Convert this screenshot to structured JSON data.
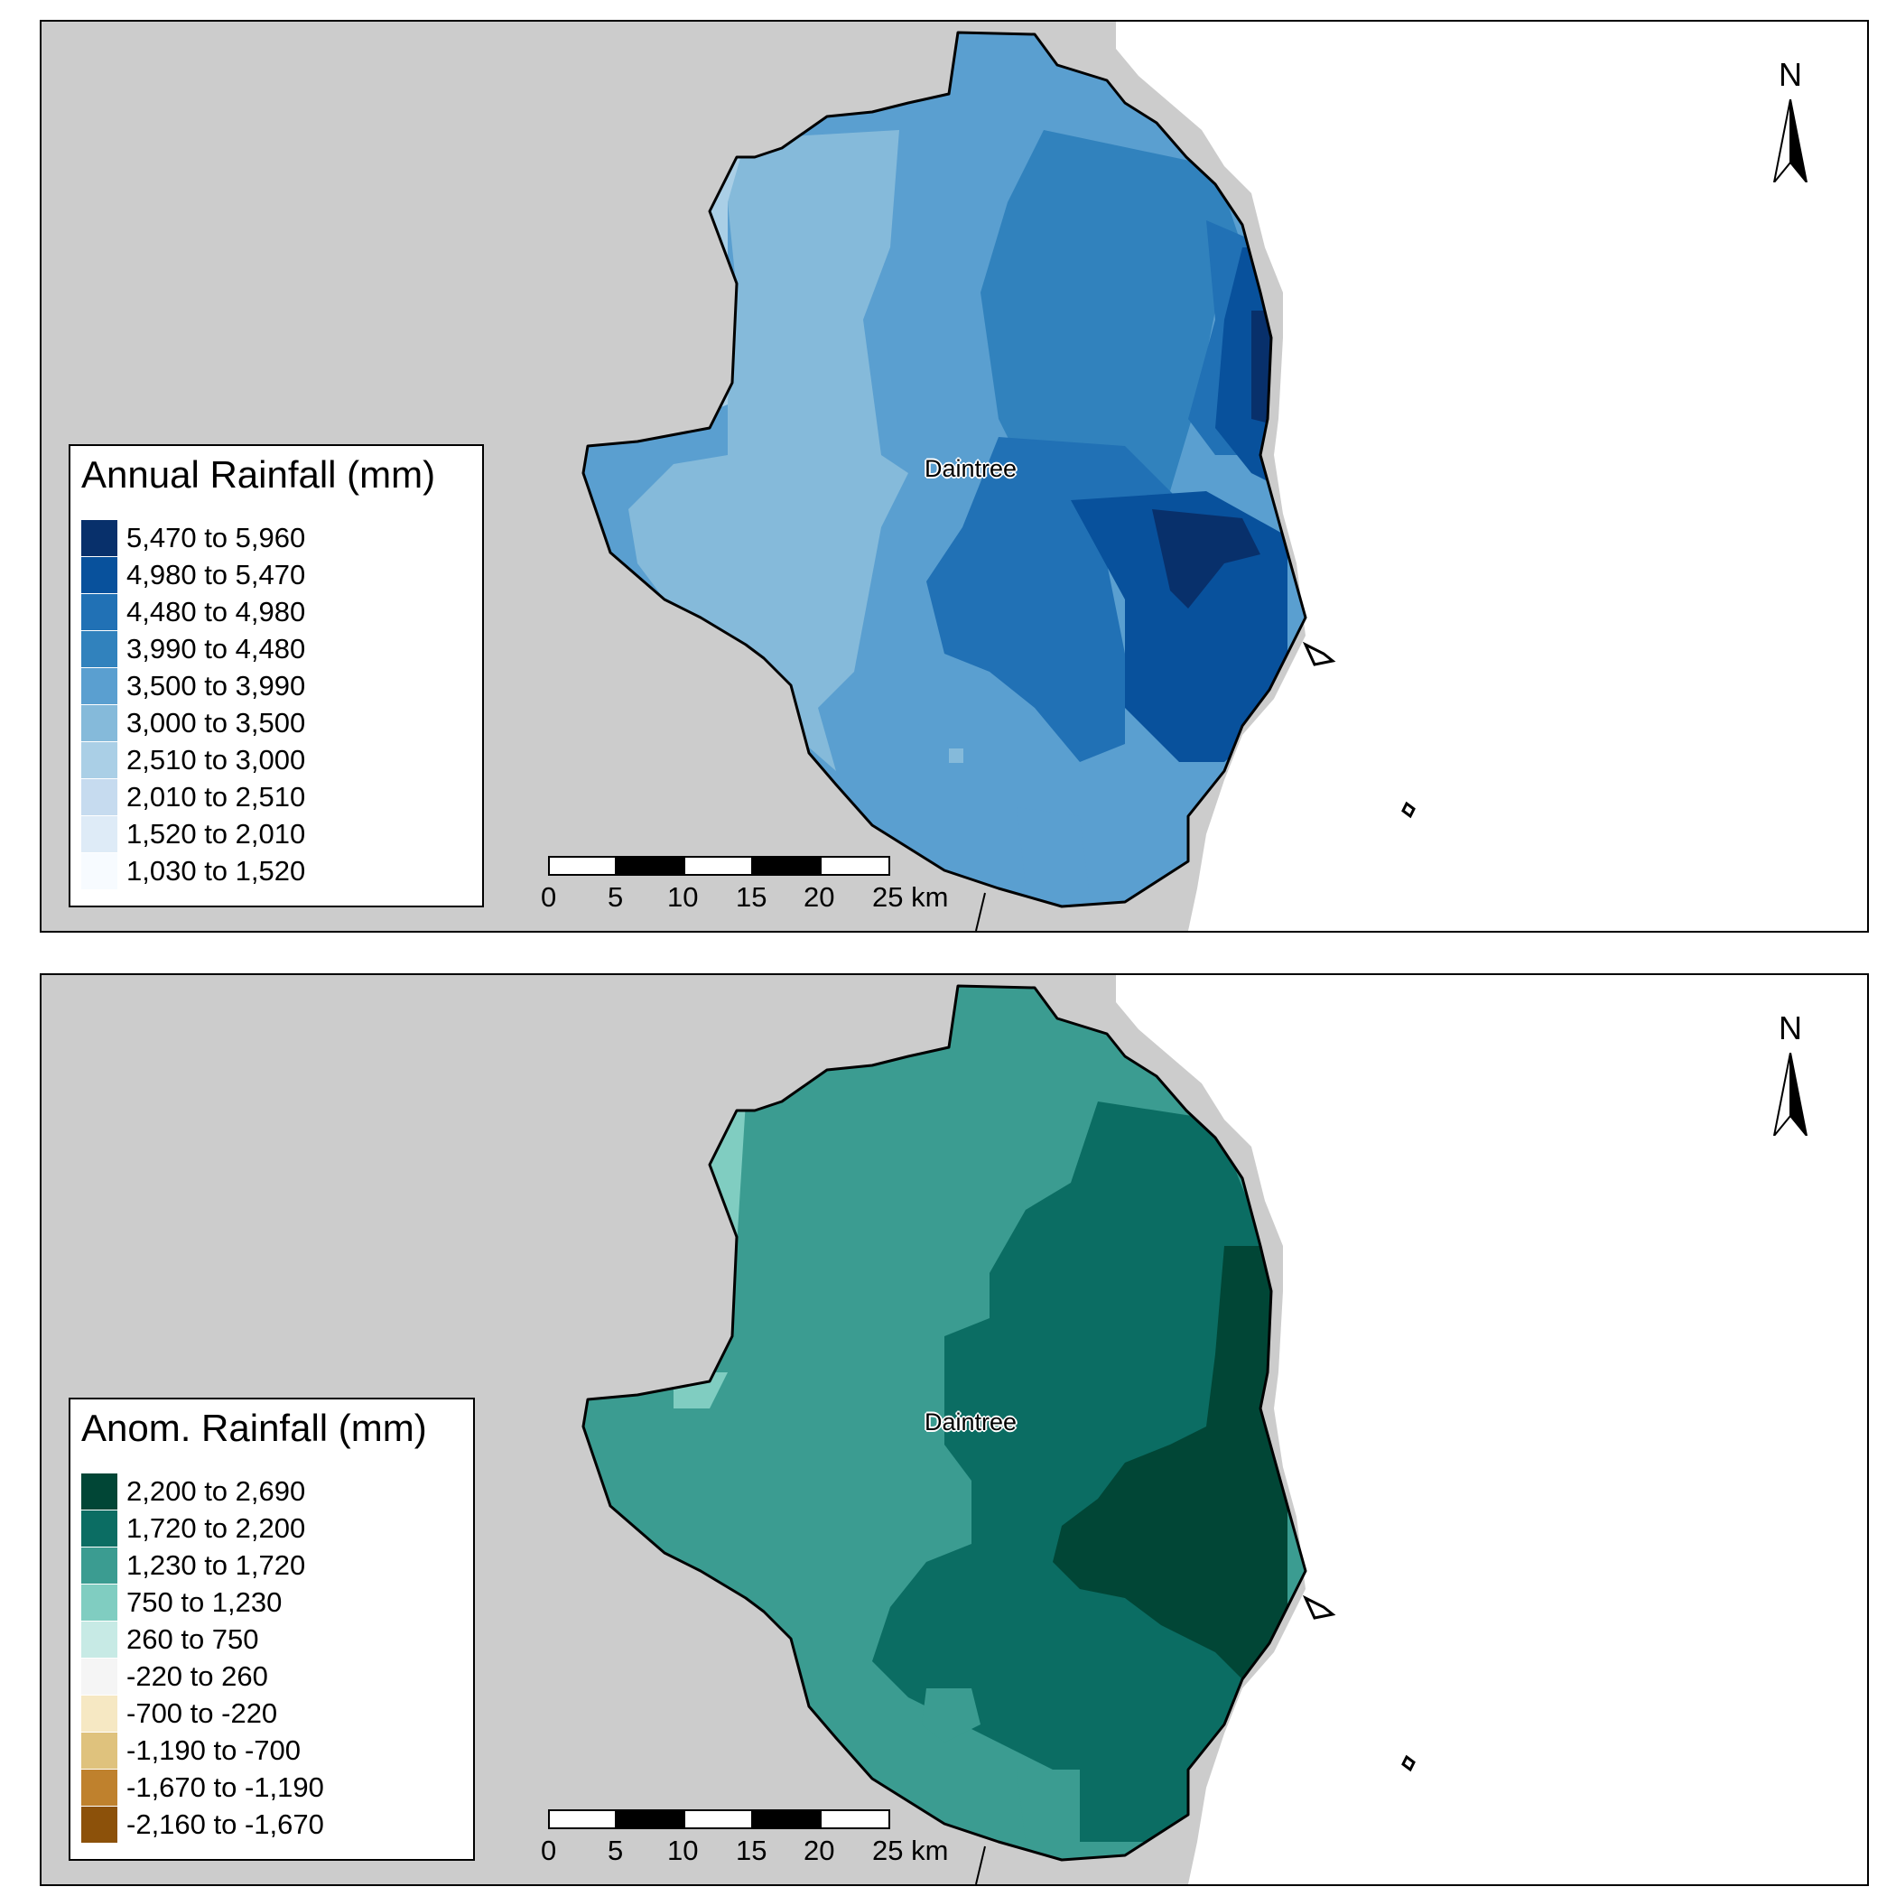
{
  "maps": [
    {
      "id": "annual",
      "place_label": "Daintree",
      "north_label": "N",
      "legend": {
        "title": "Annual Rainfall (mm)",
        "classes": [
          {
            "label": "5,470 to 5,960",
            "color": "#08306b"
          },
          {
            "label": "4,980 to 5,470",
            "color": "#08519c"
          },
          {
            "label": "4,480 to 4,980",
            "color": "#2171b5"
          },
          {
            "label": "3,990 to 4,480",
            "color": "#3182bd"
          },
          {
            "label": "3,500 to 3,990",
            "color": "#5a9fd0"
          },
          {
            "label": "3,000 to 3,500",
            "color": "#85bada"
          },
          {
            "label": "2,510 to 3,000",
            "color": "#aacfe6"
          },
          {
            "label": "2,010 to 2,510",
            "color": "#c6dbef"
          },
          {
            "label": "1,520 to 2,010",
            "color": "#deebf7"
          },
          {
            "label": "1,030 to 1,520",
            "color": "#f7fbff"
          }
        ]
      },
      "scalebar": {
        "ticks": [
          "0",
          "5",
          "10",
          "15",
          "20",
          "25 km"
        ]
      }
    },
    {
      "id": "anomaly",
      "place_label": "Daintree",
      "north_label": "N",
      "legend": {
        "title": "Anom. Rainfall (mm)",
        "classes": [
          {
            "label": "2,200 to 2,690",
            "color": "#014636"
          },
          {
            "label": "1,720 to 2,200",
            "color": "#0b6d63"
          },
          {
            "label": "1,230 to 1,720",
            "color": "#3b9c91"
          },
          {
            "label": "750 to 1,230",
            "color": "#80cdc1"
          },
          {
            "label": "260 to 750",
            "color": "#c7eae5"
          },
          {
            "label": "-220 to 260",
            "color": "#f5f5f5"
          },
          {
            "label": "-700 to -220",
            "color": "#f6e8c3"
          },
          {
            "label": "-1,190 to -700",
            "color": "#dfc27d"
          },
          {
            "label": "-1,670 to -1,190",
            "color": "#bf812d"
          },
          {
            "label": "-2,160 to -1,670",
            "color": "#8c510a"
          }
        ]
      },
      "scalebar": {
        "ticks": [
          "0",
          "5",
          "10",
          "15",
          "20",
          "25 km"
        ]
      }
    }
  ],
  "colors": {
    "land": "#cccccc",
    "ocean": "#ffffff",
    "outline": "#000000"
  }
}
